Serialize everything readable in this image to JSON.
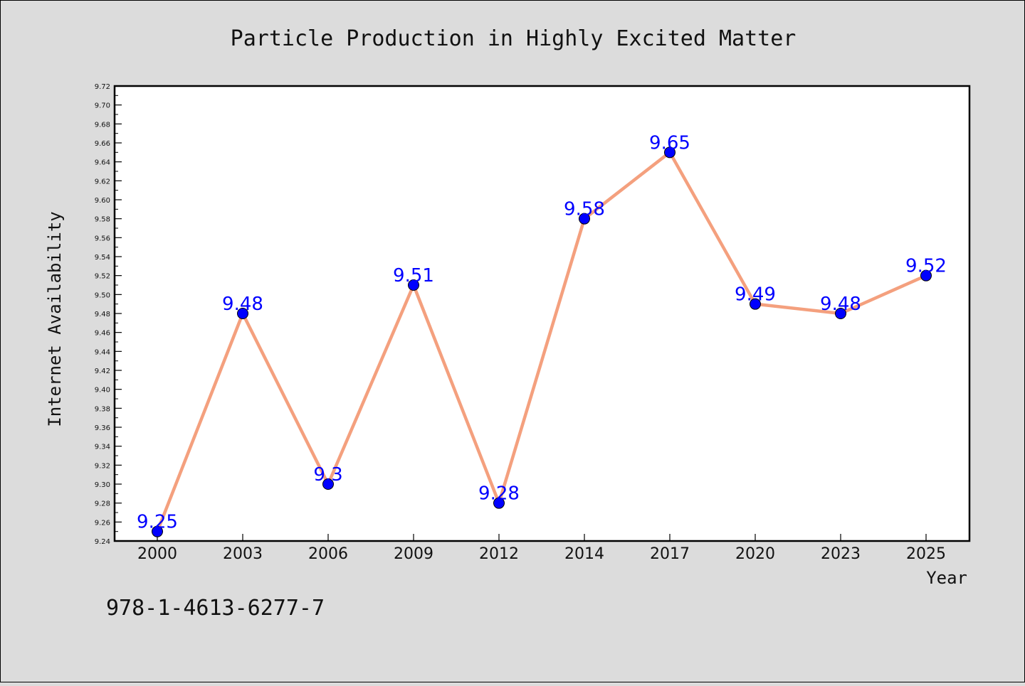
{
  "chart_data": {
    "type": "line",
    "title": "Particle Production in Highly Excited Matter",
    "xlabel": "Year",
    "ylabel": "Internet Availability",
    "categories": [
      "2000",
      "2003",
      "2006",
      "2009",
      "2012",
      "2014",
      "2017",
      "2020",
      "2023",
      "2025"
    ],
    "series": [
      {
        "values": [
          9.25,
          9.48,
          9.3,
          9.51,
          9.28,
          9.58,
          9.65,
          9.49,
          9.48,
          9.52
        ],
        "data_labels": [
          "9.25",
          "9.48",
          "9.3",
          "9.51",
          "9.28",
          "9.58",
          "9.65",
          "9.49",
          "9.48",
          "9.52"
        ]
      }
    ],
    "ylim": [
      9.24,
      9.72
    ],
    "yticks": [
      "9.24",
      "9.26",
      "9.28",
      "9.30",
      "9.32",
      "9.34",
      "9.36",
      "9.38",
      "9.40",
      "9.42",
      "9.44",
      "9.46",
      "9.48",
      "9.50",
      "9.52",
      "9.54",
      "9.56",
      "9.58",
      "9.60",
      "9.62",
      "9.64",
      "9.66",
      "9.68",
      "9.70",
      "9.72"
    ],
    "grid": false,
    "legend": "none",
    "colors": {
      "line": "#f4a07e",
      "marker": "#0000ff",
      "marker_edge": "#000000",
      "data_label": "#0000ff",
      "background": "#dcdcdc",
      "plot_background": "#ffffff"
    }
  },
  "annotation": "978-1-4613-6277-7"
}
